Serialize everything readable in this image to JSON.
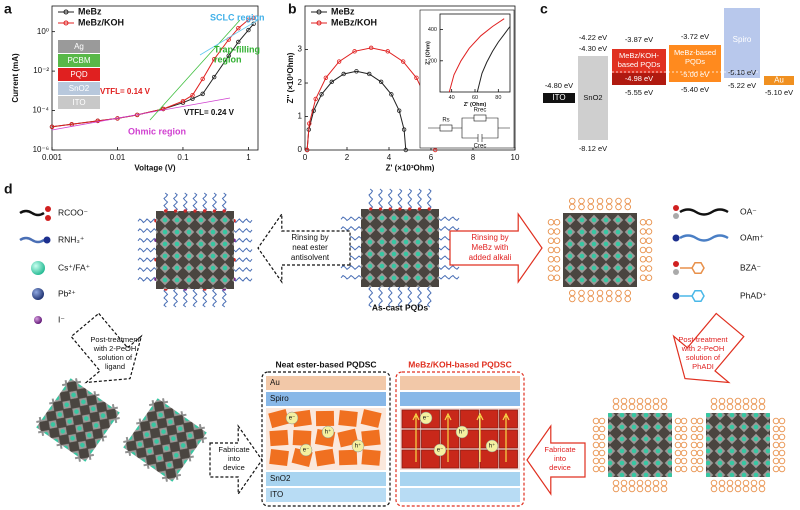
{
  "panel_labels": [
    "a",
    "b",
    "c",
    "d"
  ],
  "chart_data": [
    {
      "type": "line",
      "x_scale": "log",
      "y_scale": "log",
      "xlabel": "Voltage (V)",
      "ylabel": "Current (mA)",
      "xlim": [
        0.001,
        1.4
      ],
      "ylim": [
        1e-06,
        20
      ],
      "xticks": [
        0.001,
        0.01,
        0.1,
        1
      ],
      "yticks": [
        {
          "value": 1e-06,
          "label": "10⁻⁶"
        },
        {
          "value": 0.0001,
          "label": "10⁻⁴"
        },
        {
          "value": 0.01,
          "label": "10⁻²"
        },
        {
          "value": 1,
          "label": "10⁰"
        }
      ],
      "x": [
        0.001,
        0.002,
        0.005,
        0.01,
        0.02,
        0.05,
        0.1,
        0.14,
        0.2,
        0.3,
        0.5,
        0.7,
        1,
        1.2
      ],
      "series": [
        {
          "name": "MeBz",
          "color": "#222222",
          "values": [
            1.5e-05,
            2e-05,
            3e-05,
            4e-05,
            6e-05,
            0.00012,
            0.00025,
            0.0004,
            0.0007,
            0.005,
            0.06,
            0.3,
            1.2,
            2.5
          ]
        },
        {
          "name": "MeBz/KOH",
          "color": "#e02020",
          "values": [
            1.5e-05,
            2e-05,
            3e-05,
            4e-05,
            6e-05,
            0.00012,
            0.0003,
            0.0006,
            0.004,
            0.04,
            0.4,
            1.5,
            4,
            5
          ]
        }
      ],
      "sclc_label": "SCLC region",
      "trap_label": [
        "Trap-filling",
        "region"
      ],
      "vtfl_red": "VTFL= 0.14 V",
      "vtfl_black": "VTFL= 0.24 V",
      "ohmic_label": "Ohmic region",
      "inset_layers": [
        "Ag",
        "PCBM",
        "PQD",
        "SnO2",
        "ITO"
      ]
    },
    {
      "type": "line",
      "xlabel": "Z' (×10³Ohm)",
      "ylabel": "Z'' (×10³Ohm)",
      "xlim": [
        0,
        10
      ],
      "ylim": [
        0,
        4.3
      ],
      "xticks": [
        0,
        2,
        4,
        6,
        8,
        10
      ],
      "yticks": [
        0,
        1,
        2,
        3
      ],
      "series": [
        {
          "name": "MeBz",
          "color": "#222222",
          "x": [
            0.1,
            0.18,
            0.415,
            0.788,
            1.275,
            1.841,
            2.45,
            3.059,
            3.625,
            4.112,
            4.485,
            4.72,
            4.8
          ],
          "values": [
            0,
            0.609,
            1.175,
            1.661,
            2.035,
            2.27,
            2.35,
            2.27,
            2.035,
            1.661,
            1.175,
            0.609,
            0
          ]
        },
        {
          "name": "MeBz/KOH",
          "color": "#e02020",
          "x": [
            0.1,
            0.204,
            0.509,
            0.993,
            1.625,
            2.36,
            3.15,
            3.94,
            4.675,
            5.307,
            5.791,
            6.096,
            6.2
          ],
          "values": [
            0,
            0.79,
            1.525,
            2.156,
            2.641,
            2.946,
            3.05,
            2.946,
            2.641,
            2.156,
            1.525,
            0.79,
            0
          ]
        }
      ],
      "circuit_labels": [
        "Rs",
        "Rrec",
        "Crec"
      ]
    },
    {
      "type": "line",
      "xlabel": "Z' (Ohm)",
      "ylabel": "Z'' (Ohm)",
      "xlim": [
        30,
        90
      ],
      "ylim": [
        0,
        500
      ],
      "xticks": [
        40,
        60,
        80
      ],
      "yticks": [
        200,
        400
      ],
      "series": [
        {
          "color": "#222222",
          "x": [
            62,
            66,
            70,
            75,
            80,
            85,
            90
          ],
          "values": [
            0,
            120,
            190,
            260,
            320,
            370,
            420
          ]
        },
        {
          "color": "#e02020",
          "x": [
            38,
            42,
            48,
            55,
            65,
            75,
            85
          ],
          "values": [
            0,
            110,
            200,
            280,
            360,
            420,
            470
          ]
        }
      ]
    }
  ],
  "energy_diagram": {
    "ito": {
      "label": "ITO",
      "level": "-4.80 eV"
    },
    "sno2": {
      "label": "SnO2",
      "top": "-4.22 eV",
      "top2": "-4.30 eV",
      "bottom": "-8.12 eV"
    },
    "koh": {
      "label": [
        "MeBz/KOH-",
        "based PQDs"
      ],
      "top": "-3.87 eV",
      "mid": "-4.98 eV",
      "bottom": "-5.55 eV"
    },
    "mebz": {
      "label": [
        "MeBz-based",
        "PQDs"
      ],
      "top": "-3.72 eV",
      "mid": "-5.00 eV",
      "bottom": "-5.40 eV"
    },
    "spiro": {
      "label": "Spiro",
      "mid": "-5.10 eV",
      "bottom": "-5.22 eV"
    },
    "au": {
      "label": "Au",
      "level": "-5.10 eV"
    }
  },
  "schematic": {
    "legend_left": [
      "RCOO⁻",
      "RNH₃⁺",
      "Cs⁺/FA⁺",
      "Pb²⁺",
      "I⁻"
    ],
    "legend_right": [
      "OA⁻",
      "OAm⁺",
      "BZA⁻",
      "PhAD⁺"
    ],
    "as_cast": "As-cast PQDs",
    "arrow_neat": [
      "Rinsing by",
      "neat ester",
      "antisolvent"
    ],
    "arrow_alkali": [
      "Rinsing by",
      "MeBz with",
      "added alkali"
    ],
    "arrow_post_ligand": [
      "Post-treatment",
      "with 2-PeOH",
      "solution of",
      "ligand"
    ],
    "arrow_post_phadi": [
      "Post-treatment",
      "with 2-PeOH",
      "solution of",
      "PhADI"
    ],
    "arrow_fab_left": [
      "Fabricate",
      "into",
      "device"
    ],
    "arrow_fab_right": [
      "Fabricate",
      "into",
      "device"
    ],
    "device_neat": {
      "title": "Neat ester-based PQDSC",
      "layers": [
        "Au",
        "Spiro",
        "SnO2",
        "ITO"
      ],
      "carriers": [
        "e⁻",
        "h⁺",
        "e⁻",
        "h⁺"
      ]
    },
    "device_koh": {
      "title": "MeBz/KOH-based PQDSC",
      "carriers": [
        "e⁻",
        "h⁺",
        "e⁻",
        "h⁺"
      ]
    }
  }
}
